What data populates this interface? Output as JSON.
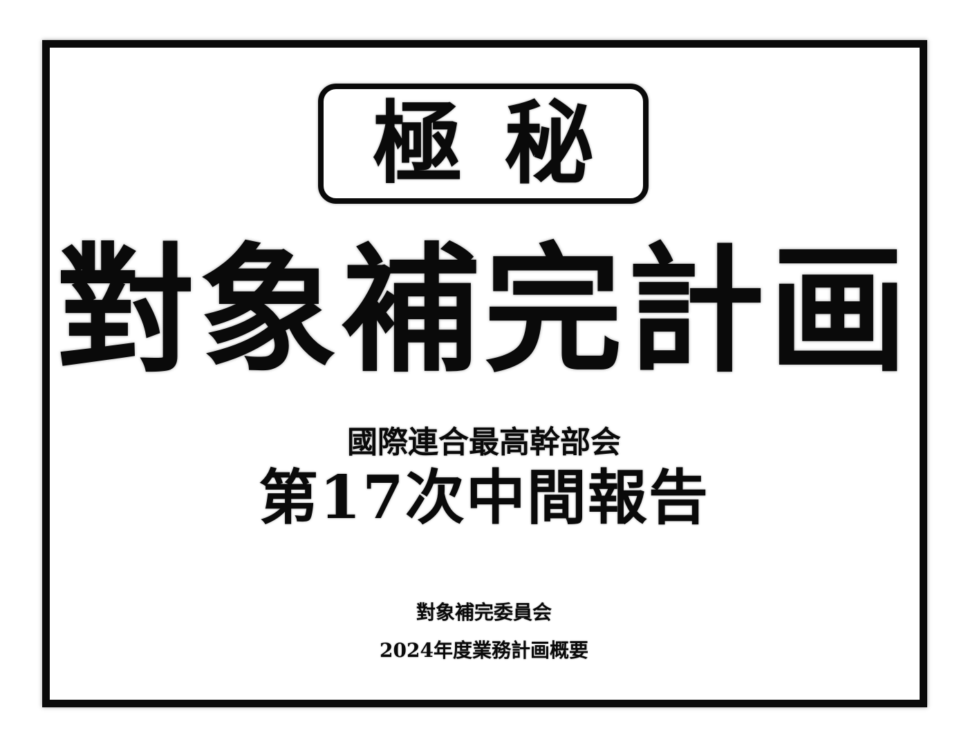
{
  "document": {
    "stamp": "極秘",
    "title": "對象補完計画",
    "organization": "國際連合最高幹部会",
    "report_name": "第17次中間報告",
    "committee": "對象補完委員会",
    "subtitle": "2024年度業務計画概要"
  }
}
